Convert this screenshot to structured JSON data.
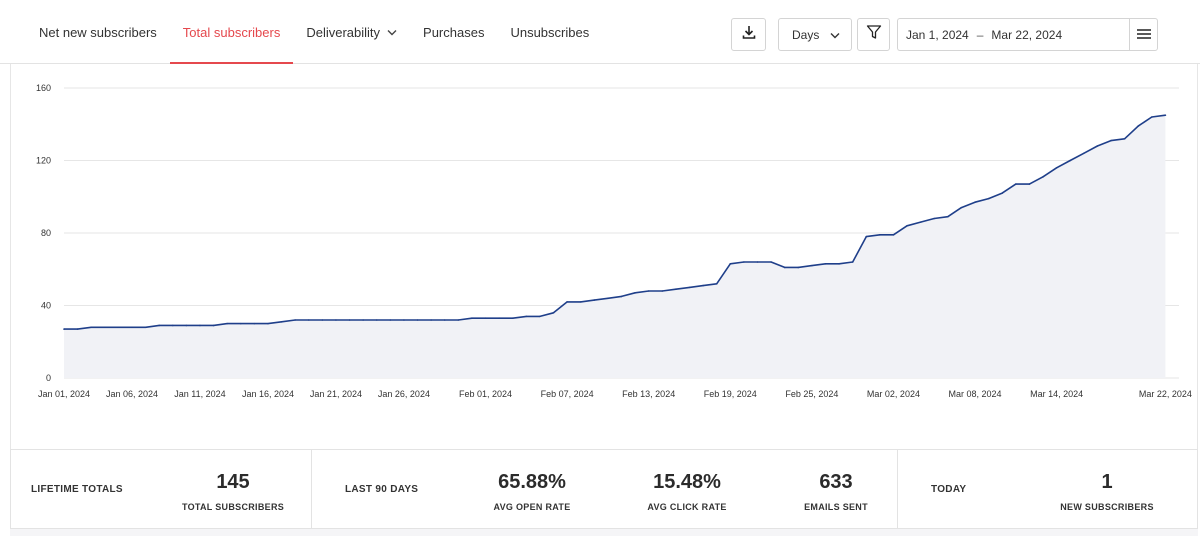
{
  "tabs": [
    {
      "label": "Net new subscribers"
    },
    {
      "label": "Total subscribers"
    },
    {
      "label": "Deliverability"
    },
    {
      "label": "Purchases"
    },
    {
      "label": "Unsubscribes"
    }
  ],
  "active_tab": "Total subscribers",
  "controls": {
    "download_icon": "download-icon",
    "interval_value": "Days",
    "filter_icon": "filter-icon",
    "date_start": "Jan 1, 2024",
    "date_separator": "–",
    "date_end": "Mar 22, 2024",
    "menu_icon": "hamburger-menu-icon"
  },
  "colors": {
    "accent": "#e5484d",
    "line": "#1f3f8a",
    "area": "#f1f2f6",
    "grid": "#e6e6e6"
  },
  "chart_data": {
    "type": "area",
    "title": "",
    "xlabel": "",
    "ylabel": "",
    "ylim": [
      0,
      160
    ],
    "yticks": [
      0,
      40,
      80,
      120,
      160
    ],
    "grid": true,
    "x_start": "2024-01-01",
    "x_end": "2024-03-23",
    "x_tick_labels": [
      {
        "label": "Jan 01, 2024",
        "date": "2024-01-01"
      },
      {
        "label": "Jan 06, 2024",
        "date": "2024-01-06"
      },
      {
        "label": "Jan 11, 2024",
        "date": "2024-01-11"
      },
      {
        "label": "Jan 16, 2024",
        "date": "2024-01-16"
      },
      {
        "label": "Jan 21, 2024",
        "date": "2024-01-21"
      },
      {
        "label": "Jan 26, 2024",
        "date": "2024-01-26"
      },
      {
        "label": "Feb 01, 2024",
        "date": "2024-02-01"
      },
      {
        "label": "Feb 07, 2024",
        "date": "2024-02-07"
      },
      {
        "label": "Feb 13, 2024",
        "date": "2024-02-13"
      },
      {
        "label": "Feb 19, 2024",
        "date": "2024-02-19"
      },
      {
        "label": "Feb 25, 2024",
        "date": "2024-02-25"
      },
      {
        "label": "Mar 02, 2024",
        "date": "2024-03-02"
      },
      {
        "label": "Mar 08, 2024",
        "date": "2024-03-08"
      },
      {
        "label": "Mar 14, 2024",
        "date": "2024-03-14"
      },
      {
        "label": "Mar 22, 2024",
        "date": "2024-03-22"
      }
    ],
    "series": [
      {
        "points": [
          [
            "2024-01-01",
            27
          ],
          [
            "2024-01-02",
            27
          ],
          [
            "2024-01-03",
            28
          ],
          [
            "2024-01-04",
            28
          ],
          [
            "2024-01-05",
            28
          ],
          [
            "2024-01-06",
            28
          ],
          [
            "2024-01-07",
            28
          ],
          [
            "2024-01-08",
            29
          ],
          [
            "2024-01-09",
            29
          ],
          [
            "2024-01-10",
            29
          ],
          [
            "2024-01-11",
            29
          ],
          [
            "2024-01-12",
            29
          ],
          [
            "2024-01-13",
            30
          ],
          [
            "2024-01-14",
            30
          ],
          [
            "2024-01-15",
            30
          ],
          [
            "2024-01-16",
            30
          ],
          [
            "2024-01-17",
            31
          ],
          [
            "2024-01-18",
            32
          ],
          [
            "2024-01-19",
            32
          ],
          [
            "2024-01-20",
            32
          ],
          [
            "2024-01-21",
            32
          ],
          [
            "2024-01-22",
            32
          ],
          [
            "2024-01-23",
            32
          ],
          [
            "2024-01-24",
            32
          ],
          [
            "2024-01-25",
            32
          ],
          [
            "2024-01-26",
            32
          ],
          [
            "2024-01-27",
            32
          ],
          [
            "2024-01-28",
            32
          ],
          [
            "2024-01-29",
            32
          ],
          [
            "2024-01-30",
            32
          ],
          [
            "2024-01-31",
            33
          ],
          [
            "2024-02-01",
            33
          ],
          [
            "2024-02-02",
            33
          ],
          [
            "2024-02-03",
            33
          ],
          [
            "2024-02-04",
            34
          ],
          [
            "2024-02-05",
            34
          ],
          [
            "2024-02-06",
            36
          ],
          [
            "2024-02-07",
            42
          ],
          [
            "2024-02-08",
            42
          ],
          [
            "2024-02-09",
            43
          ],
          [
            "2024-02-10",
            44
          ],
          [
            "2024-02-11",
            45
          ],
          [
            "2024-02-12",
            47
          ],
          [
            "2024-02-13",
            48
          ],
          [
            "2024-02-14",
            48
          ],
          [
            "2024-02-15",
            49
          ],
          [
            "2024-02-16",
            50
          ],
          [
            "2024-02-17",
            51
          ],
          [
            "2024-02-18",
            52
          ],
          [
            "2024-02-19",
            63
          ],
          [
            "2024-02-20",
            64
          ],
          [
            "2024-02-21",
            64
          ],
          [
            "2024-02-22",
            64
          ],
          [
            "2024-02-23",
            61
          ],
          [
            "2024-02-24",
            61
          ],
          [
            "2024-02-25",
            62
          ],
          [
            "2024-02-26",
            63
          ],
          [
            "2024-02-27",
            63
          ],
          [
            "2024-02-28",
            64
          ],
          [
            "2024-02-29",
            78
          ],
          [
            "2024-03-01",
            79
          ],
          [
            "2024-03-02",
            79
          ],
          [
            "2024-03-03",
            84
          ],
          [
            "2024-03-04",
            86
          ],
          [
            "2024-03-05",
            88
          ],
          [
            "2024-03-06",
            89
          ],
          [
            "2024-03-07",
            94
          ],
          [
            "2024-03-08",
            97
          ],
          [
            "2024-03-09",
            99
          ],
          [
            "2024-03-10",
            102
          ],
          [
            "2024-03-11",
            107
          ],
          [
            "2024-03-12",
            107
          ],
          [
            "2024-03-13",
            111
          ],
          [
            "2024-03-14",
            116
          ],
          [
            "2024-03-15",
            120
          ],
          [
            "2024-03-16",
            124
          ],
          [
            "2024-03-17",
            128
          ],
          [
            "2024-03-18",
            131
          ],
          [
            "2024-03-19",
            132
          ],
          [
            "2024-03-20",
            139
          ],
          [
            "2024-03-21",
            144
          ],
          [
            "2024-03-22",
            145
          ]
        ]
      }
    ]
  },
  "stats": {
    "lifetime": {
      "category": "LIFETIME TOTALS",
      "items": [
        {
          "value": "145",
          "label": "TOTAL SUBSCRIBERS"
        }
      ]
    },
    "last90": {
      "category": "LAST 90 DAYS",
      "items": [
        {
          "value": "65.88%",
          "label": "AVG OPEN RATE"
        },
        {
          "value": "15.48%",
          "label": "AVG CLICK RATE"
        },
        {
          "value": "633",
          "label": "EMAILS SENT"
        }
      ]
    },
    "today": {
      "category": "TODAY",
      "items": [
        {
          "value": "1",
          "label": "NEW SUBSCRIBERS"
        }
      ]
    }
  }
}
